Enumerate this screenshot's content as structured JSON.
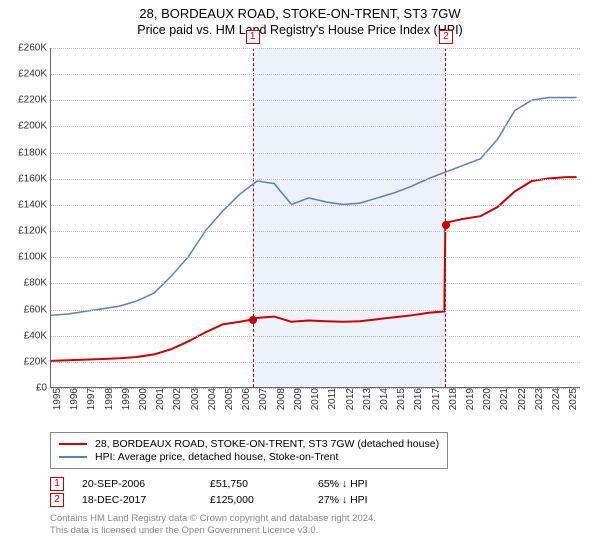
{
  "title_line1": "28, BORDEAUX ROAD, STOKE-ON-TRENT, ST3 7GW",
  "title_line2": "Price paid vs. HM Land Registry's House Price Index (HPI)",
  "chart": {
    "type": "line",
    "background_color": "#ffffff",
    "grid_color": "#bfbfbf",
    "axis_color": "#666666",
    "x": {
      "min": 1995,
      "max": 2025.8,
      "ticks": [
        1995,
        1996,
        1997,
        1998,
        1999,
        2000,
        2001,
        2002,
        2003,
        2004,
        2005,
        2006,
        2007,
        2008,
        2009,
        2010,
        2011,
        2012,
        2013,
        2014,
        2015,
        2016,
        2017,
        2018,
        2019,
        2020,
        2021,
        2022,
        2023,
        2024,
        2025
      ]
    },
    "y": {
      "min": 0,
      "max": 260000,
      "tick_step": 20000,
      "tick_labels": [
        "£0",
        "£20K",
        "£40K",
        "£60K",
        "£80K",
        "£100K",
        "£120K",
        "£140K",
        "£160K",
        "£180K",
        "£200K",
        "£220K",
        "£240K",
        "£260K"
      ]
    },
    "label_fontsize": 10,
    "shaded_region": {
      "from_year": 2006.72,
      "to_year": 2017.96
    },
    "markers": [
      {
        "label": "1",
        "year": 2006.72
      },
      {
        "label": "2",
        "year": 2017.96
      }
    ],
    "series": [
      {
        "name": "property",
        "label": "28, BORDEAUX ROAD, STOKE-ON-TRENT, ST3 7GW (detached house)",
        "color": "#cc0000",
        "line_width": 2,
        "points": [
          [
            1995,
            20000
          ],
          [
            1996,
            20500
          ],
          [
            1997,
            21000
          ],
          [
            1998,
            21500
          ],
          [
            1999,
            22000
          ],
          [
            2000,
            23000
          ],
          [
            2001,
            25000
          ],
          [
            2002,
            29000
          ],
          [
            2003,
            35000
          ],
          [
            2004,
            42000
          ],
          [
            2005,
            48000
          ],
          [
            2006,
            50000
          ],
          [
            2006.72,
            51750
          ],
          [
            2007,
            53000
          ],
          [
            2008,
            54000
          ],
          [
            2009,
            50000
          ],
          [
            2010,
            51000
          ],
          [
            2011,
            50500
          ],
          [
            2012,
            50000
          ],
          [
            2013,
            50500
          ],
          [
            2014,
            52000
          ],
          [
            2015,
            53500
          ],
          [
            2016,
            55000
          ],
          [
            2017,
            57000
          ],
          [
            2017.9,
            58000
          ],
          [
            2017.96,
            125000
          ],
          [
            2018,
            126000
          ],
          [
            2019,
            129000
          ],
          [
            2020,
            131000
          ],
          [
            2021,
            138000
          ],
          [
            2022,
            150000
          ],
          [
            2023,
            158000
          ],
          [
            2024,
            160000
          ],
          [
            2025,
            161000
          ],
          [
            2025.6,
            161000
          ]
        ],
        "sale_points": [
          {
            "year": 2006.72,
            "price": 51750
          },
          {
            "year": 2017.96,
            "price": 125000
          }
        ]
      },
      {
        "name": "hpi",
        "label": "HPI: Average price, detached house, Stoke-on-Trent",
        "color": "#5b7fbf",
        "line_width": 1.5,
        "points": [
          [
            1995,
            55000
          ],
          [
            1996,
            56000
          ],
          [
            1997,
            58000
          ],
          [
            1998,
            60000
          ],
          [
            1999,
            62000
          ],
          [
            2000,
            66000
          ],
          [
            2001,
            72000
          ],
          [
            2002,
            85000
          ],
          [
            2003,
            100000
          ],
          [
            2004,
            120000
          ],
          [
            2005,
            135000
          ],
          [
            2006,
            148000
          ],
          [
            2007,
            158000
          ],
          [
            2008,
            156000
          ],
          [
            2009,
            140000
          ],
          [
            2010,
            145000
          ],
          [
            2011,
            142000
          ],
          [
            2012,
            140000
          ],
          [
            2013,
            141000
          ],
          [
            2014,
            145000
          ],
          [
            2015,
            149000
          ],
          [
            2016,
            154000
          ],
          [
            2017,
            160000
          ],
          [
            2018,
            165000
          ],
          [
            2019,
            170000
          ],
          [
            2020,
            175000
          ],
          [
            2021,
            190000
          ],
          [
            2022,
            212000
          ],
          [
            2023,
            220000
          ],
          [
            2024,
            222000
          ],
          [
            2025,
            222000
          ],
          [
            2025.6,
            222000
          ]
        ]
      }
    ]
  },
  "transactions": [
    {
      "marker": "1",
      "date": "20-SEP-2006",
      "price": "£51,750",
      "delta": "65% ↓ HPI"
    },
    {
      "marker": "2",
      "date": "18-DEC-2017",
      "price": "£125,000",
      "delta": "27% ↓ HPI"
    }
  ],
  "footnote_line1": "Contains HM Land Registry data © Crown copyright and database right 2024.",
  "footnote_line2": "This data is licensed under the Open Government Licence v3.0."
}
